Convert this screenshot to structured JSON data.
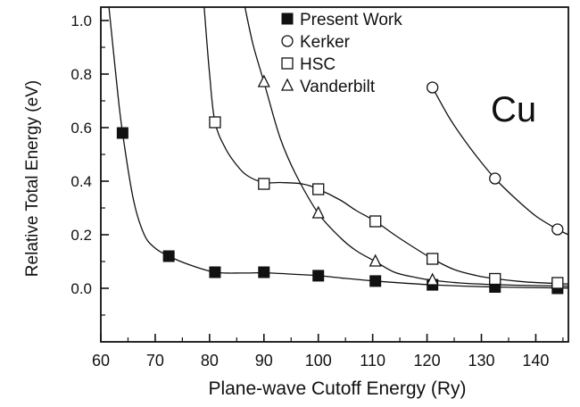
{
  "chart_data": {
    "type": "scatter",
    "xlabel": "Plane-wave Cutoff Energy (Ry)",
    "ylabel": "Relative Total Energy (eV)",
    "xlim": [
      60,
      146
    ],
    "ylim": [
      -0.2,
      1.05
    ],
    "xticks": [
      60,
      70,
      80,
      90,
      100,
      110,
      120,
      130,
      140
    ],
    "yticks": [
      0.0,
      0.2,
      0.4,
      0.6,
      0.8,
      1.0
    ],
    "xtick_labels": [
      "60",
      "70",
      "80",
      "90",
      "100",
      "110",
      "120",
      "130",
      "140"
    ],
    "ytick_labels": [
      "0.0",
      "0.2",
      "0.4",
      "0.6",
      "0.8",
      "1.0"
    ],
    "annotation": "Cu",
    "legend_position": "top-left",
    "grid": false,
    "series": [
      {
        "name": "Present Work",
        "marker": "filled-square",
        "points": [
          [
            64,
            0.58
          ],
          [
            72.5,
            0.12
          ],
          [
            81,
            0.06
          ],
          [
            90,
            0.06
          ],
          [
            100,
            0.047
          ],
          [
            110.5,
            0.027
          ],
          [
            121,
            0.013
          ],
          [
            132.5,
            0.005
          ],
          [
            144,
            0.0
          ]
        ],
        "curve": [
          [
            61.5,
            1.05
          ],
          [
            63,
            0.75
          ],
          [
            64,
            0.58
          ],
          [
            66,
            0.33
          ],
          [
            68,
            0.2
          ],
          [
            70,
            0.15
          ],
          [
            72.5,
            0.12
          ],
          [
            76,
            0.09
          ],
          [
            81,
            0.06
          ],
          [
            86,
            0.057
          ],
          [
            90,
            0.058
          ],
          [
            95,
            0.053
          ],
          [
            100,
            0.047
          ],
          [
            105,
            0.037
          ],
          [
            110.5,
            0.027
          ],
          [
            116,
            0.019
          ],
          [
            121,
            0.013
          ],
          [
            127,
            0.008
          ],
          [
            132.5,
            0.005
          ],
          [
            138,
            0.003
          ],
          [
            146,
            0.001
          ]
        ]
      },
      {
        "name": "Kerker",
        "marker": "open-circle",
        "points": [
          [
            121,
            0.75
          ],
          [
            132.5,
            0.41
          ],
          [
            144,
            0.22
          ]
        ],
        "curve": [
          [
            121,
            0.75
          ],
          [
            124,
            0.64
          ],
          [
            127,
            0.55
          ],
          [
            130,
            0.47
          ],
          [
            132.5,
            0.41
          ],
          [
            136,
            0.34
          ],
          [
            140,
            0.27
          ],
          [
            144,
            0.22
          ],
          [
            146,
            0.2
          ]
        ]
      },
      {
        "name": "HSC",
        "marker": "open-square",
        "points": [
          [
            81,
            0.62
          ],
          [
            90,
            0.39
          ],
          [
            100,
            0.37
          ],
          [
            110.5,
            0.25
          ],
          [
            121,
            0.11
          ],
          [
            132.5,
            0.035
          ],
          [
            144,
            0.02
          ]
        ],
        "curve": [
          [
            79,
            1.05
          ],
          [
            80,
            0.8
          ],
          [
            81,
            0.62
          ],
          [
            83,
            0.52
          ],
          [
            85,
            0.46
          ],
          [
            87,
            0.42
          ],
          [
            90,
            0.395
          ],
          [
            93,
            0.395
          ],
          [
            97,
            0.39
          ],
          [
            100,
            0.37
          ],
          [
            104,
            0.33
          ],
          [
            107,
            0.29
          ],
          [
            110.5,
            0.25
          ],
          [
            114,
            0.2
          ],
          [
            117,
            0.16
          ],
          [
            121,
            0.11
          ],
          [
            125,
            0.07
          ],
          [
            129,
            0.048
          ],
          [
            132.5,
            0.036
          ],
          [
            138,
            0.024
          ],
          [
            146,
            0.016
          ]
        ]
      },
      {
        "name": "Vanderbilt",
        "marker": "open-triangle",
        "points": [
          [
            90,
            0.77
          ],
          [
            100,
            0.28
          ],
          [
            110.5,
            0.1
          ],
          [
            121,
            0.03
          ]
        ],
        "curve": [
          [
            86.5,
            1.05
          ],
          [
            88,
            0.91
          ],
          [
            90,
            0.77
          ],
          [
            93,
            0.56
          ],
          [
            96,
            0.42
          ],
          [
            100,
            0.28
          ],
          [
            104,
            0.19
          ],
          [
            107,
            0.14
          ],
          [
            110.5,
            0.1
          ],
          [
            114,
            0.06
          ],
          [
            118,
            0.04
          ],
          [
            121,
            0.03
          ],
          [
            126,
            0.02
          ],
          [
            132,
            0.014
          ],
          [
            140,
            0.01
          ],
          [
            146,
            0.008
          ]
        ]
      }
    ]
  }
}
